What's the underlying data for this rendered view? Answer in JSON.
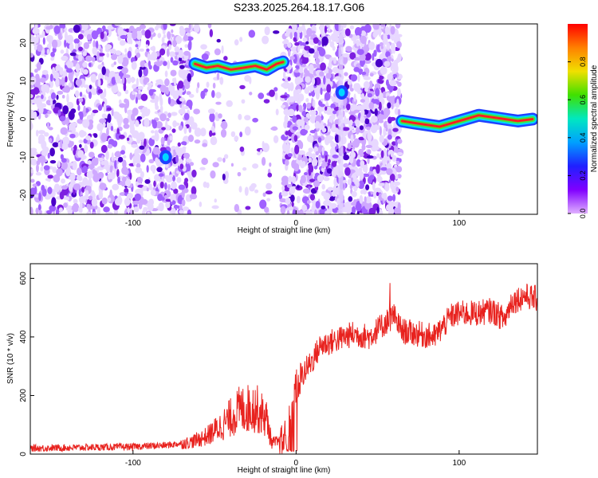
{
  "title": "S233.2025.264.18.17.G06",
  "colors": {
    "line": "#e8221e",
    "ridge": [
      "#2040ff",
      "#00d8ff",
      "#40e840",
      "#ff2020"
    ],
    "speckle": [
      "#e8d8ff",
      "#cfa8ff",
      "#a060ff",
      "#7d1fe0",
      "#4a00c8"
    ],
    "colorbar": [
      "#ff0000",
      "#ff8000",
      "#f0e000",
      "#40e000",
      "#00e8c0",
      "#00a0ff",
      "#2020ff",
      "#8000ff",
      "#e0b0ff"
    ]
  },
  "chart_data": [
    {
      "type": "heatmap",
      "xlabel": "Height of straight line (km)",
      "ylabel": "Frequency (Hz)",
      "xlim": [
        -163,
        148
      ],
      "ylim": [
        -25,
        25
      ],
      "xticks": [
        -100,
        0,
        100
      ],
      "yticks": [
        -20,
        -10,
        0,
        10,
        20
      ],
      "colorbar": {
        "label": "Normalized spectral amplitude",
        "range": [
          0,
          1
        ],
        "ticks": [
          "0.0",
          "0.2",
          "0.4",
          "0.6",
          "0.8"
        ]
      },
      "ridges": [
        {
          "x": [
            -62,
            -55,
            -48,
            -40,
            -32,
            -25,
            -18,
            -12,
            -8
          ],
          "y": [
            14.5,
            13.5,
            14,
            13,
            13.5,
            14,
            13,
            14.5,
            15
          ]
        },
        {
          "x": [
            65,
            72,
            80,
            88,
            96,
            104,
            112,
            120,
            128,
            136,
            145
          ],
          "y": [
            -0.5,
            -1,
            -1.5,
            -2,
            -1,
            0,
            1,
            0.5,
            0,
            -0.5,
            0
          ]
        }
      ],
      "blobs": [
        {
          "x": -80,
          "y": -10,
          "amp": 0.5
        },
        {
          "x": 28,
          "y": 7,
          "amp": 0.35
        }
      ]
    },
    {
      "type": "line",
      "xlabel": "Height of straight line (km)",
      "ylabel": "SNR (10 * v/v)",
      "xlim": [
        -163,
        148
      ],
      "ylim": [
        0,
        650
      ],
      "xticks": [
        -100,
        0,
        100
      ],
      "yticks": [
        0,
        200,
        400,
        600
      ],
      "trend": {
        "x": [
          -163,
          -100,
          -80,
          -65,
          -55,
          -45,
          -35,
          -25,
          -18,
          -15,
          -8,
          -5,
          0,
          5,
          10,
          15,
          25,
          35,
          45,
          55,
          60,
          65,
          75,
          85,
          95,
          100,
          110,
          120,
          128,
          132,
          140,
          148
        ],
        "y": [
          20,
          25,
          30,
          40,
          60,
          100,
          150,
          160,
          120,
          40,
          40,
          100,
          230,
          280,
          320,
          370,
          390,
          410,
          400,
          450,
          470,
          420,
          410,
          400,
          470,
          480,
          480,
          490,
          460,
          520,
          540,
          530
        ]
      }
    }
  ]
}
